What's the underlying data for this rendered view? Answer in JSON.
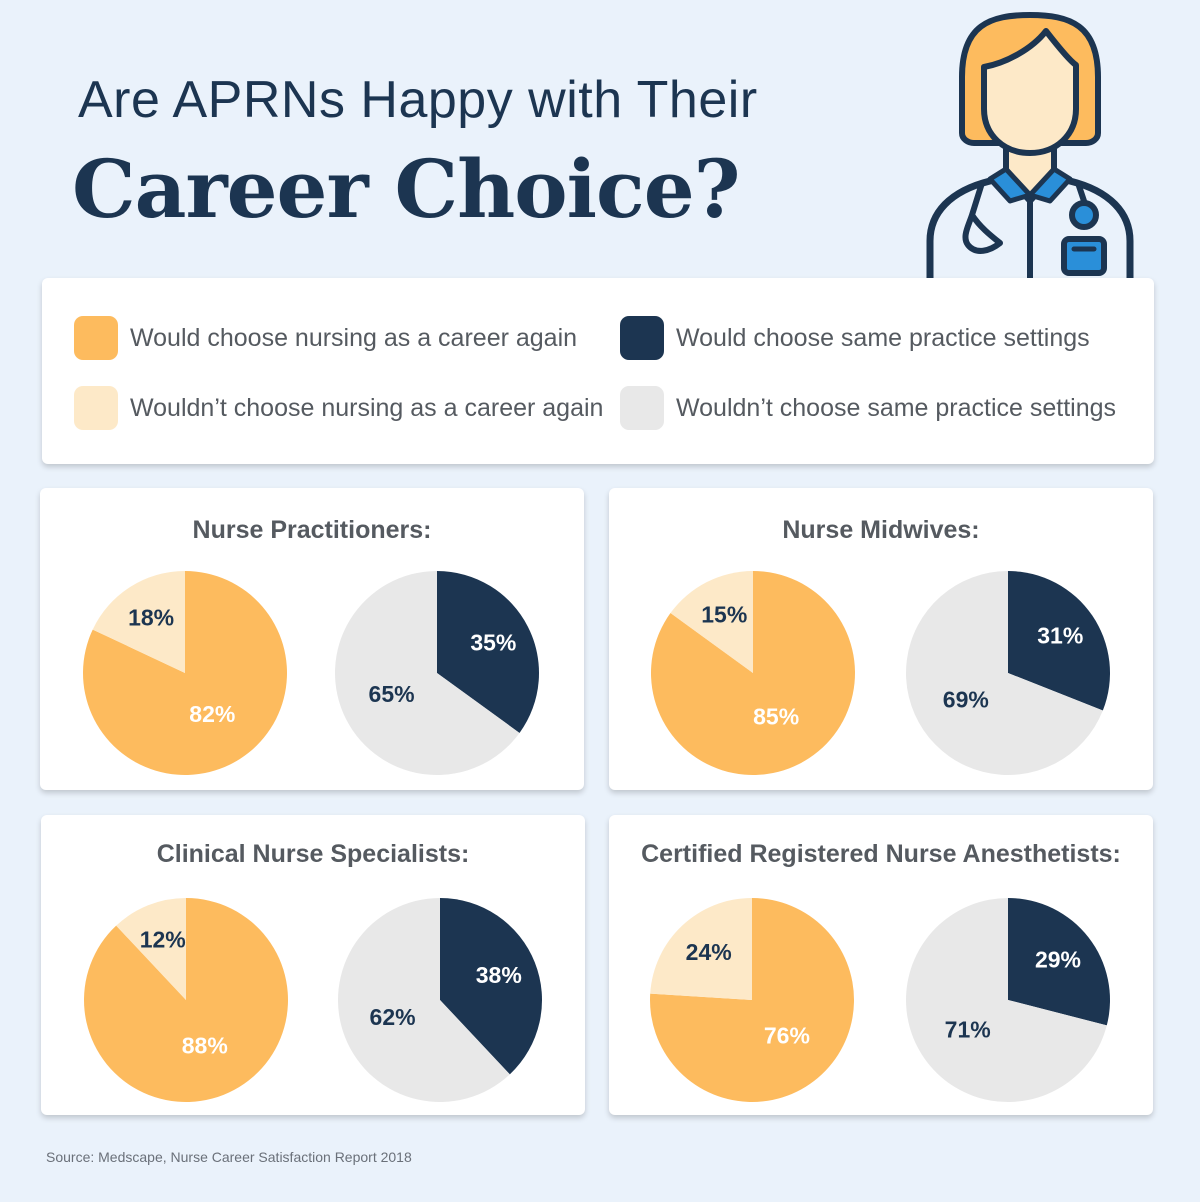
{
  "title": {
    "line1": "Are APRNs Happy with Their",
    "line2": "Career Choice?"
  },
  "colors": {
    "would_nursing": "#fdbb5e",
    "wouldnt_nursing": "#fde9c8",
    "would_practice": "#1c3551",
    "wouldnt_practice": "#e8e8e8",
    "title": "#1c3551",
    "text": "#555a60",
    "background": "#eaf2fb"
  },
  "legend": [
    {
      "label": "Would choose nursing as a career again",
      "color": "#fdbb5e"
    },
    {
      "label": "Would choose same practice settings",
      "color": "#1c3551"
    },
    {
      "label": "Wouldn’t choose nursing as a career again",
      "color": "#fde9c8"
    },
    {
      "label": "Wouldn’t choose same practice settings",
      "color": "#e8e8e8"
    }
  ],
  "illustration": {
    "icon": "nurse-with-stethoscope-icon"
  },
  "chart_data": [
    {
      "type": "pie",
      "title": "Nurse Practitioners:",
      "pies": [
        {
          "slices": [
            {
              "category": "Would choose nursing as a career again",
              "value": 82,
              "label": "82%"
            },
            {
              "category": "Wouldn’t choose nursing as a career again",
              "value": 18,
              "label": "18%"
            }
          ]
        },
        {
          "slices": [
            {
              "category": "Would choose same practice settings",
              "value": 35,
              "label": "35%"
            },
            {
              "category": "Wouldn’t choose same practice settings",
              "value": 65,
              "label": "65%"
            }
          ]
        }
      ]
    },
    {
      "type": "pie",
      "title": "Nurse Midwives:",
      "pies": [
        {
          "slices": [
            {
              "category": "Would choose nursing as a career again",
              "value": 85,
              "label": "85%"
            },
            {
              "category": "Wouldn’t choose nursing as a career again",
              "value": 15,
              "label": "15%"
            }
          ]
        },
        {
          "slices": [
            {
              "category": "Would choose same practice settings",
              "value": 31,
              "label": "31%"
            },
            {
              "category": "Wouldn’t choose same practice settings",
              "value": 69,
              "label": "69%"
            }
          ]
        }
      ]
    },
    {
      "type": "pie",
      "title": "Clinical Nurse Specialists:",
      "pies": [
        {
          "slices": [
            {
              "category": "Would choose nursing as a career again",
              "value": 88,
              "label": "88%"
            },
            {
              "category": "Wouldn’t choose nursing as a career again",
              "value": 12,
              "label": "12%"
            }
          ]
        },
        {
          "slices": [
            {
              "category": "Would choose same practice settings",
              "value": 38,
              "label": "38%"
            },
            {
              "category": "Wouldn’t choose same practice settings",
              "value": 62,
              "label": "62%"
            }
          ]
        }
      ]
    },
    {
      "type": "pie",
      "title": "Certified Registered Nurse Anesthetists:",
      "pies": [
        {
          "slices": [
            {
              "category": "Would choose nursing as a career again",
              "value": 76,
              "label": "76%"
            },
            {
              "category": "Wouldn’t choose nursing as a career again",
              "value": 24,
              "label": "24%"
            }
          ]
        },
        {
          "slices": [
            {
              "category": "Would choose same practice settings",
              "value": 29,
              "label": "29%"
            },
            {
              "category": "Wouldn’t choose same practice settings",
              "value": 71,
              "label": "71%"
            }
          ]
        }
      ]
    }
  ],
  "source": "Source: Medscape, Nurse Career Satisfaction Report 2018"
}
